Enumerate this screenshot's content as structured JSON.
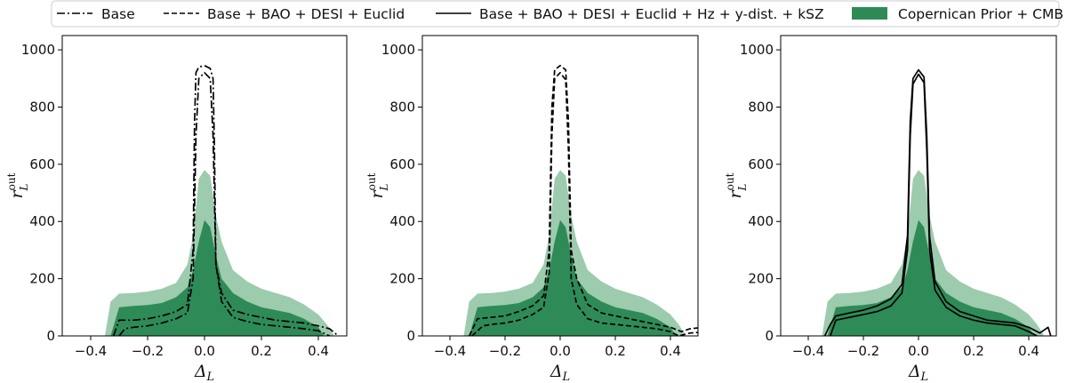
{
  "legend": {
    "items": [
      {
        "label": "Base",
        "style": "dashdot"
      },
      {
        "label": "Base + BAO + DESI + Euclid",
        "style": "dashed"
      },
      {
        "label": "Base + BAO + DESI + Euclid + Hz + y-dist. + kSZ",
        "style": "solid"
      },
      {
        "label": "Copernican Prior + CMB",
        "style": "fill"
      }
    ]
  },
  "colors": {
    "fill_dark": "#2e8b57",
    "fill_light": "#9dcbae",
    "line": "#000000",
    "axes": "#000000"
  },
  "chart_data": [
    {
      "type": "area",
      "panel": 1,
      "xlabel": "Δ_L",
      "ylabel": "r_L^out",
      "xlim": [
        -0.5,
        0.5
      ],
      "ylim": [
        0,
        1050
      ],
      "xticks": [
        -0.4,
        -0.2,
        0.0,
        0.2,
        0.4
      ],
      "yticks": [
        0,
        200,
        400,
        600,
        800,
        1000
      ],
      "contour_line_style": "dashdot",
      "series": [
        {
          "name": "Copernican Prior + CMB (outer)",
          "x": [
            -0.35,
            -0.33,
            -0.3,
            -0.25,
            -0.2,
            -0.15,
            -0.1,
            -0.06,
            -0.04,
            -0.02,
            0.0,
            0.02,
            0.04,
            0.06,
            0.1,
            0.15,
            0.2,
            0.25,
            0.3,
            0.35,
            0.4,
            0.43,
            0.45,
            0.455
          ],
          "y": [
            0,
            120,
            148,
            150,
            155,
            165,
            185,
            250,
            350,
            550,
            580,
            560,
            420,
            330,
            230,
            190,
            165,
            150,
            135,
            110,
            75,
            40,
            10,
            0
          ]
        },
        {
          "name": "Copernican Prior + CMB (inner)",
          "x": [
            -0.33,
            -0.3,
            -0.25,
            -0.2,
            -0.15,
            -0.1,
            -0.06,
            -0.04,
            -0.02,
            0.0,
            0.02,
            0.04,
            0.06,
            0.1,
            0.15,
            0.2,
            0.25,
            0.3,
            0.35,
            0.4,
            0.42
          ],
          "y": [
            0,
            100,
            105,
            108,
            115,
            135,
            170,
            230,
            330,
            405,
            380,
            280,
            200,
            150,
            120,
            100,
            90,
            80,
            60,
            30,
            0
          ]
        },
        {
          "name": "Constraint contour (outer)",
          "x": [
            -0.32,
            -0.3,
            -0.25,
            -0.2,
            -0.15,
            -0.1,
            -0.06,
            -0.04,
            -0.035,
            -0.03,
            -0.02,
            0.0,
            0.02,
            0.03,
            0.035,
            0.04,
            0.06,
            0.1,
            0.15,
            0.2,
            0.25,
            0.3,
            0.35,
            0.4,
            0.44,
            0.47
          ],
          "y": [
            0,
            55,
            55,
            60,
            70,
            85,
            110,
            300,
            750,
            920,
            940,
            945,
            935,
            900,
            650,
            250,
            150,
            90,
            75,
            65,
            55,
            50,
            45,
            35,
            25,
            0
          ]
        },
        {
          "name": "Constraint contour (inner)",
          "x": [
            -0.3,
            -0.28,
            -0.25,
            -0.2,
            -0.15,
            -0.1,
            -0.06,
            -0.04,
            -0.03,
            -0.02,
            0.0,
            0.02,
            0.03,
            0.04,
            0.06,
            0.1,
            0.15,
            0.2,
            0.25,
            0.3,
            0.35,
            0.4,
            0.44
          ],
          "y": [
            0,
            25,
            30,
            35,
            45,
            60,
            80,
            200,
            700,
            900,
            920,
            900,
            700,
            250,
            120,
            65,
            50,
            40,
            35,
            30,
            25,
            18,
            0
          ]
        }
      ]
    },
    {
      "type": "area",
      "panel": 2,
      "xlabel": "Δ_L",
      "ylabel": "r_L^out",
      "xlim": [
        -0.5,
        0.5
      ],
      "ylim": [
        0,
        1050
      ],
      "xticks": [
        -0.4,
        -0.2,
        0.0,
        0.2,
        0.4
      ],
      "yticks": [
        0,
        200,
        400,
        600,
        800,
        1000
      ],
      "contour_line_style": "dashed",
      "series": [
        {
          "name": "Copernican Prior + CMB (outer)",
          "x": [
            -0.35,
            -0.33,
            -0.3,
            -0.25,
            -0.2,
            -0.15,
            -0.1,
            -0.06,
            -0.04,
            -0.02,
            0.0,
            0.02,
            0.04,
            0.06,
            0.1,
            0.15,
            0.2,
            0.25,
            0.3,
            0.35,
            0.4,
            0.43,
            0.45,
            0.455
          ],
          "y": [
            0,
            120,
            148,
            150,
            155,
            165,
            185,
            250,
            350,
            550,
            580,
            560,
            420,
            330,
            230,
            190,
            165,
            150,
            135,
            110,
            75,
            40,
            10,
            0
          ]
        },
        {
          "name": "Copernican Prior + CMB (inner)",
          "x": [
            -0.33,
            -0.3,
            -0.25,
            -0.2,
            -0.15,
            -0.1,
            -0.06,
            -0.04,
            -0.02,
            0.0,
            0.02,
            0.04,
            0.06,
            0.1,
            0.15,
            0.2,
            0.25,
            0.3,
            0.35,
            0.4,
            0.42
          ],
          "y": [
            0,
            100,
            105,
            108,
            115,
            135,
            170,
            230,
            330,
            405,
            380,
            280,
            200,
            150,
            120,
            100,
            90,
            80,
            60,
            30,
            0
          ]
        },
        {
          "name": "Constraint contour (outer)",
          "x": [
            -0.33,
            -0.3,
            -0.25,
            -0.2,
            -0.15,
            -0.1,
            -0.06,
            -0.04,
            -0.03,
            -0.02,
            0.0,
            0.02,
            0.03,
            0.04,
            0.06,
            0.1,
            0.15,
            0.2,
            0.25,
            0.3,
            0.35,
            0.4,
            0.44,
            0.47,
            0.5
          ],
          "y": [
            0,
            60,
            65,
            70,
            85,
            105,
            140,
            300,
            800,
            930,
            945,
            930,
            750,
            300,
            200,
            110,
            80,
            70,
            60,
            50,
            40,
            30,
            15,
            25,
            28
          ]
        },
        {
          "name": "Constraint contour (inner)",
          "x": [
            -0.32,
            -0.28,
            -0.25,
            -0.2,
            -0.15,
            -0.1,
            -0.06,
            -0.04,
            -0.03,
            -0.02,
            0.0,
            0.02,
            0.03,
            0.04,
            0.06,
            0.1,
            0.15,
            0.2,
            0.25,
            0.3,
            0.35,
            0.4,
            0.43,
            0.47,
            0.5
          ],
          "y": [
            0,
            35,
            40,
            45,
            55,
            75,
            100,
            220,
            700,
            900,
            920,
            895,
            650,
            200,
            110,
            60,
            45,
            40,
            35,
            30,
            25,
            15,
            0,
            10,
            12
          ]
        }
      ]
    },
    {
      "type": "area",
      "panel": 3,
      "xlabel": "Δ_L",
      "ylabel": "r_L^out",
      "xlim": [
        -0.5,
        0.5
      ],
      "ylim": [
        0,
        1050
      ],
      "xticks": [
        -0.4,
        -0.2,
        0.0,
        0.2,
        0.4
      ],
      "yticks": [
        0,
        200,
        400,
        600,
        800,
        1000
      ],
      "contour_line_style": "solid",
      "series": [
        {
          "name": "Copernican Prior + CMB (outer)",
          "x": [
            -0.35,
            -0.33,
            -0.3,
            -0.25,
            -0.2,
            -0.15,
            -0.1,
            -0.06,
            -0.04,
            -0.02,
            0.0,
            0.02,
            0.04,
            0.06,
            0.1,
            0.15,
            0.2,
            0.25,
            0.3,
            0.35,
            0.4,
            0.43,
            0.45,
            0.455
          ],
          "y": [
            0,
            120,
            148,
            150,
            155,
            165,
            185,
            250,
            350,
            550,
            580,
            560,
            420,
            330,
            230,
            190,
            165,
            150,
            135,
            110,
            75,
            40,
            10,
            0
          ]
        },
        {
          "name": "Copernican Prior + CMB (inner)",
          "x": [
            -0.33,
            -0.3,
            -0.25,
            -0.2,
            -0.15,
            -0.1,
            -0.06,
            -0.04,
            -0.02,
            0.0,
            0.02,
            0.04,
            0.06,
            0.1,
            0.15,
            0.2,
            0.25,
            0.3,
            0.35,
            0.4,
            0.42
          ],
          "y": [
            0,
            100,
            105,
            108,
            115,
            135,
            170,
            230,
            330,
            405,
            380,
            280,
            200,
            150,
            120,
            100,
            90,
            80,
            60,
            30,
            0
          ]
        },
        {
          "name": "Constraint contour (outer)",
          "x": [
            -0.34,
            -0.32,
            -0.3,
            -0.25,
            -0.2,
            -0.15,
            -0.1,
            -0.06,
            -0.04,
            -0.03,
            -0.02,
            0.0,
            0.02,
            0.03,
            0.04,
            0.06,
            0.1,
            0.15,
            0.2,
            0.25,
            0.3,
            0.35,
            0.4,
            0.44,
            0.47,
            0.48
          ],
          "y": [
            0,
            40,
            70,
            80,
            90,
            105,
            130,
            180,
            350,
            750,
            900,
            930,
            905,
            700,
            350,
            190,
            120,
            85,
            70,
            55,
            50,
            45,
            30,
            10,
            30,
            0
          ]
        },
        {
          "name": "Constraint contour (inner)",
          "x": [
            -0.32,
            -0.3,
            -0.25,
            -0.2,
            -0.15,
            -0.1,
            -0.06,
            -0.04,
            -0.03,
            -0.02,
            0.0,
            0.02,
            0.03,
            0.04,
            0.06,
            0.1,
            0.15,
            0.2,
            0.25,
            0.3,
            0.35,
            0.4,
            0.43
          ],
          "y": [
            0,
            55,
            65,
            75,
            85,
            105,
            150,
            300,
            700,
            880,
            915,
            885,
            650,
            300,
            160,
            100,
            70,
            55,
            45,
            40,
            35,
            15,
            0
          ]
        }
      ]
    }
  ]
}
